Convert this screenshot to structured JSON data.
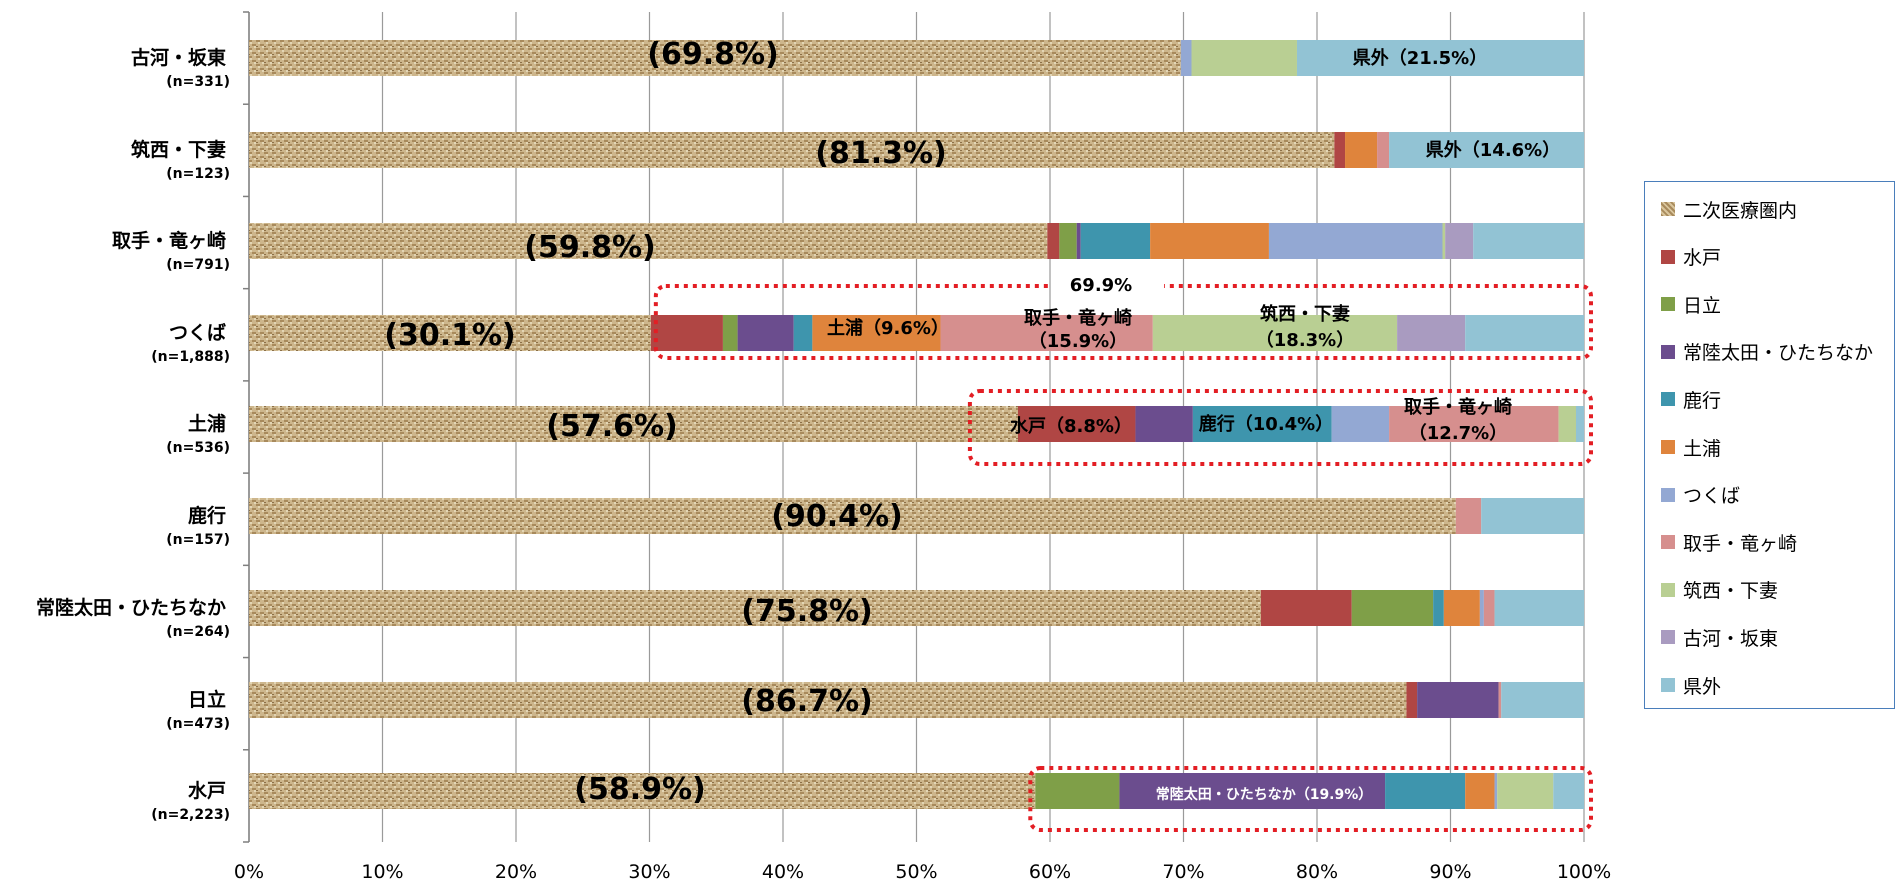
{
  "chart_data": {
    "type": "bar",
    "orientation": "horizontal",
    "stacked": "percent",
    "xlim": [
      0,
      100
    ],
    "xticks": [
      "0%",
      "10%",
      "20%",
      "30%",
      "40%",
      "50%",
      "60%",
      "70%",
      "80%",
      "90%",
      "100%"
    ],
    "grid": "vertical",
    "legend_position": "right",
    "series_names": [
      "二次医療圏内",
      "水戸",
      "日立",
      "常陸太田・ひたちなか",
      "鹿行",
      "土浦",
      "つくば",
      "取手・竜ヶ崎",
      "筑西・下妻",
      "古河・坂東",
      "県外"
    ],
    "series_colors": [
      "#c9b48a",
      "#b04644",
      "#7f9f48",
      "#6b4d8e",
      "#3e95ad",
      "#df843c",
      "#93a8d3",
      "#d68f8e",
      "#b9cf93",
      "#a99bc0",
      "#92c3d4"
    ],
    "categories": [
      {
        "name": "古河・坂東",
        "n": "(n=331)",
        "values": [
          69.8,
          0,
          0,
          0,
          0,
          0,
          0.8,
          0,
          7.9,
          0,
          21.5
        ]
      },
      {
        "name": "筑西・下妻",
        "n": "(n=123)",
        "values": [
          81.3,
          0.8,
          0,
          0,
          0,
          2.4,
          0,
          0.9,
          0,
          0,
          14.6
        ]
      },
      {
        "name": "取手・竜ヶ崎",
        "n": "(n=791)",
        "values": [
          59.8,
          0.9,
          1.3,
          0.3,
          5.2,
          8.9,
          13.0,
          0,
          0.2,
          2.1,
          8.3
        ]
      },
      {
        "name": "つくば",
        "n": "(n=1,888)",
        "values": [
          30.1,
          5.4,
          1.1,
          4.2,
          1.4,
          9.6,
          0,
          15.9,
          18.3,
          5.1,
          8.9
        ]
      },
      {
        "name": "土浦",
        "n": "(n=536)",
        "values": [
          57.6,
          8.8,
          0,
          4.3,
          10.4,
          0,
          4.3,
          12.7,
          1.3,
          0,
          0.6
        ]
      },
      {
        "name": "鹿行",
        "n": "(n=157)",
        "values": [
          90.4,
          0,
          0,
          0,
          0,
          0,
          0,
          1.9,
          0,
          0,
          7.7
        ]
      },
      {
        "name": "常陸太田・ひたちなか",
        "n": "(n=264)",
        "values": [
          75.8,
          6.8,
          6.1,
          0,
          0.8,
          2.7,
          0.3,
          0.8,
          0,
          0,
          6.7
        ]
      },
      {
        "name": "日立",
        "n": "(n=473)",
        "values": [
          86.7,
          0.8,
          0,
          6.1,
          0,
          0,
          0,
          0.2,
          0,
          0,
          6.2
        ]
      },
      {
        "name": "水戸",
        "n": "(n=2,223)",
        "values": [
          58.9,
          0,
          6.3,
          19.9,
          6.0,
          2.2,
          0.2,
          0,
          4.2,
          0,
          2.3
        ]
      }
    ],
    "annotations": [
      {
        "row": 0,
        "text": "(69.8%)"
      },
      {
        "row": 0,
        "text": "県外（21.5%）"
      },
      {
        "row": 1,
        "text": "(81.3%)"
      },
      {
        "row": 1,
        "text": "県外（14.6%）"
      },
      {
        "row": 2,
        "text": "(59.8%)"
      },
      {
        "row": 3,
        "text": "(30.1%)"
      },
      {
        "row": 3,
        "text": "69.9%"
      },
      {
        "row": 3,
        "text": "土浦（9.6%）"
      },
      {
        "row": 3,
        "text": "取手・竜ヶ崎"
      },
      {
        "row": 3,
        "text": "（15.9%）"
      },
      {
        "row": 3,
        "text": "筑西・下妻"
      },
      {
        "row": 3,
        "text": "（18.3%）"
      },
      {
        "row": 4,
        "text": "(57.6%)"
      },
      {
        "row": 4,
        "text": "水戸（8.8%）"
      },
      {
        "row": 4,
        "text": "鹿行（10.4%）"
      },
      {
        "row": 4,
        "text": "取手・竜ヶ崎"
      },
      {
        "row": 4,
        "text": "（12.7%）"
      },
      {
        "row": 5,
        "text": "(90.4%)"
      },
      {
        "row": 6,
        "text": "(75.8%)"
      },
      {
        "row": 7,
        "text": "(86.7%)"
      },
      {
        "row": 8,
        "text": "(58.9%)"
      },
      {
        "row": 8,
        "text": "常陸太田・ひたちなか（19.9%）"
      }
    ]
  }
}
